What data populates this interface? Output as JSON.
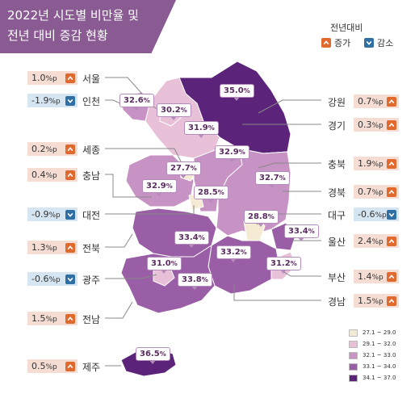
{
  "title": {
    "line1": "2022년 시도별 비만율 및",
    "line2": "전년 대비 증감 현황"
  },
  "legend": {
    "heading": "전년대비",
    "increase": "증가",
    "decrease": "감소"
  },
  "scale": [
    {
      "range": "27.1 ~ 29.0",
      "color": "#f5ebd4"
    },
    {
      "range": "29.1 ~ 32.0",
      "color": "#e8c0d8"
    },
    {
      "range": "32.1 ~ 33.0",
      "color": "#c793c4"
    },
    {
      "range": "33.1 ~ 34.0",
      "color": "#9a5ea6"
    },
    {
      "range": "34.1 ~ 37.0",
      "color": "#5b237a"
    }
  ],
  "regions": {
    "seoul": {
      "name": "서울",
      "rate": "30.2",
      "change": "1.0",
      "dir": "up"
    },
    "incheon": {
      "name": "인천",
      "rate": "32.6",
      "change": "-1.9",
      "dir": "down"
    },
    "gyeonggi": {
      "name": "경기",
      "rate": "31.9",
      "change": "0.3",
      "dir": "up"
    },
    "gangwon": {
      "name": "강원",
      "rate": "35.0",
      "change": "0.7",
      "dir": "up"
    },
    "sejong": {
      "name": "세종",
      "rate": "27.7",
      "change": "0.2",
      "dir": "up"
    },
    "chungbuk": {
      "name": "충북",
      "rate": "32.9",
      "change": "1.9",
      "dir": "up"
    },
    "chungnam": {
      "name": "충남",
      "rate": "32.9",
      "change": "0.4",
      "dir": "up"
    },
    "daejeon": {
      "name": "대전",
      "rate": "28.5",
      "change": "-0.9",
      "dir": "down"
    },
    "gyeongbuk": {
      "name": "경북",
      "rate": "32.7",
      "change": "0.7",
      "dir": "up"
    },
    "daegu": {
      "name": "대구",
      "rate": "28.8",
      "change": "-0.6",
      "dir": "down"
    },
    "jeonbuk": {
      "name": "전북",
      "rate": "33.4",
      "change": "1.3",
      "dir": "up"
    },
    "ulsan": {
      "name": "울산",
      "rate": "33.4",
      "change": "2.4",
      "dir": "up"
    },
    "gwangju": {
      "name": "광주",
      "rate": "31.0",
      "change": "-0.6",
      "dir": "down"
    },
    "jeonnam": {
      "name": "전남",
      "rate": "33.8",
      "change": "1.5",
      "dir": "up"
    },
    "gyeongnam": {
      "name": "경남",
      "rate": "33.2",
      "change": "1.5",
      "dir": "up"
    },
    "busan": {
      "name": "부산",
      "rate": "31.2",
      "change": "1.4",
      "dir": "up"
    },
    "jeju": {
      "name": "제주",
      "rate": "36.5",
      "change": "0.5",
      "dir": "up"
    }
  },
  "units": {
    "rate": "%",
    "change": "%p"
  }
}
